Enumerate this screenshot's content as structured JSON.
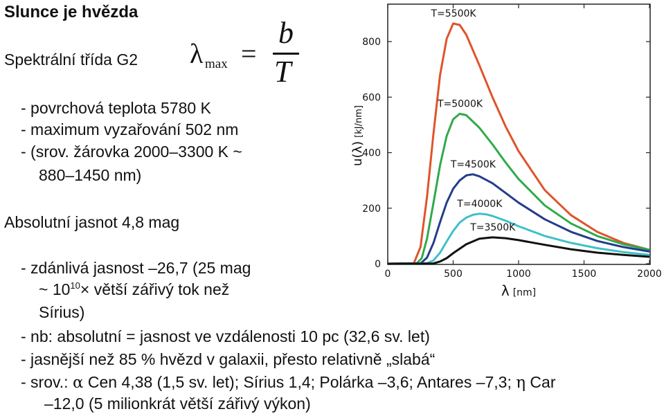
{
  "title": "Slunce je hvězda",
  "spectral_class": "Spektrální třída G2",
  "formula": {
    "lhs": "λ",
    "subscript": "max",
    "equals": "=",
    "numerator": "b",
    "denominator": "T"
  },
  "list1": [
    "- povrchová teplota 5780 K",
    "- maximum vyzařování 502 nm",
    "- (srov. žárovka 2000–3300 K ~",
    "880–1450 nm)"
  ],
  "abs_mag": "Absolutní jasnot 4,8 mag",
  "list2": {
    "line1": "- zdánlivá jasnost  –26,7 (25 mag",
    "line2_pre": "~ 10",
    "line2_sup": "10",
    "line2_post": "× větší zářivý tok než",
    "line3": "Sírius)",
    "line4": "- nb: absolutní = jasnost ve vzdálenosti 10 pc (32,6 sv. let)",
    "line5": "- jasnější než 85 % hvězd v galaxii, přesto relativně „slabá“",
    "line6_pre": "- srov.: ",
    "line6_alpha": "α",
    "line6_mid": " Cen 4,38 (1,5 sv. let); Sírius 1,4; Polárka –3,6; Antares –7,3; ",
    "line6_eta": "η",
    "line6_post": " Car",
    "line7": "–12,0 (5 milionkrát větší zářivý výkon)"
  },
  "chart_data": {
    "type": "line",
    "xlabel_symbol": "λ",
    "xlabel_unit": "[nm]",
    "ylabel_symbol": "u(λ)",
    "ylabel_unit": "[kJ/nm]",
    "xlim": [
      0,
      2000
    ],
    "ylim": [
      0,
      900
    ],
    "xticks": [
      "0",
      "500",
      "1000",
      "1500",
      "2000"
    ],
    "yticks": [
      "0",
      "200",
      "400",
      "600",
      "800"
    ],
    "grid": false,
    "series": [
      {
        "name": "T=5500K",
        "color": "#e0532b",
        "points": [
          [
            0,
            0
          ],
          [
            200,
            2
          ],
          [
            250,
            60
          ],
          [
            300,
            240
          ],
          [
            350,
            470
          ],
          [
            400,
            680
          ],
          [
            450,
            810
          ],
          [
            500,
            865
          ],
          [
            550,
            860
          ],
          [
            600,
            825
          ],
          [
            700,
            715
          ],
          [
            800,
            600
          ],
          [
            900,
            495
          ],
          [
            1000,
            405
          ],
          [
            1200,
            265
          ],
          [
            1400,
            175
          ],
          [
            1600,
            115
          ],
          [
            1800,
            75
          ],
          [
            2000,
            50
          ]
        ]
      },
      {
        "name": "T=5000K",
        "color": "#2faa4a",
        "points": [
          [
            0,
            0
          ],
          [
            220,
            1
          ],
          [
            260,
            20
          ],
          [
            300,
            90
          ],
          [
            350,
            220
          ],
          [
            400,
            355
          ],
          [
            450,
            460
          ],
          [
            500,
            520
          ],
          [
            550,
            540
          ],
          [
            600,
            535
          ],
          [
            700,
            490
          ],
          [
            800,
            430
          ],
          [
            900,
            365
          ],
          [
            1000,
            305
          ],
          [
            1200,
            210
          ],
          [
            1400,
            145
          ],
          [
            1600,
            100
          ],
          [
            1800,
            70
          ],
          [
            2000,
            50
          ]
        ]
      },
      {
        "name": "T=4500K",
        "color": "#233c8c",
        "points": [
          [
            0,
            0
          ],
          [
            250,
            1
          ],
          [
            300,
            22
          ],
          [
            350,
            75
          ],
          [
            400,
            150
          ],
          [
            450,
            220
          ],
          [
            500,
            270
          ],
          [
            550,
            300
          ],
          [
            600,
            318
          ],
          [
            650,
            322
          ],
          [
            700,
            315
          ],
          [
            800,
            290
          ],
          [
            900,
            255
          ],
          [
            1000,
            220
          ],
          [
            1200,
            160
          ],
          [
            1400,
            115
          ],
          [
            1600,
            82
          ],
          [
            1800,
            60
          ],
          [
            2000,
            44
          ]
        ]
      },
      {
        "name": "T=4000K",
        "color": "#3fc0c8",
        "points": [
          [
            0,
            0
          ],
          [
            300,
            2
          ],
          [
            350,
            12
          ],
          [
            400,
            40
          ],
          [
            450,
            80
          ],
          [
            500,
            118
          ],
          [
            550,
            148
          ],
          [
            600,
            166
          ],
          [
            650,
            176
          ],
          [
            700,
            180
          ],
          [
            750,
            178
          ],
          [
            800,
            172
          ],
          [
            900,
            155
          ],
          [
            1000,
            135
          ],
          [
            1200,
            100
          ],
          [
            1400,
            75
          ],
          [
            1600,
            56
          ],
          [
            1800,
            42
          ],
          [
            2000,
            32
          ]
        ]
      },
      {
        "name": "T=3500K",
        "color": "#111111",
        "points": [
          [
            0,
            0
          ],
          [
            350,
            1
          ],
          [
            400,
            8
          ],
          [
            450,
            20
          ],
          [
            500,
            38
          ],
          [
            600,
            70
          ],
          [
            700,
            90
          ],
          [
            800,
            95
          ],
          [
            900,
            92
          ],
          [
            1000,
            85
          ],
          [
            1200,
            68
          ],
          [
            1400,
            52
          ],
          [
            1600,
            40
          ],
          [
            1800,
            32
          ],
          [
            2000,
            25
          ]
        ]
      }
    ]
  }
}
